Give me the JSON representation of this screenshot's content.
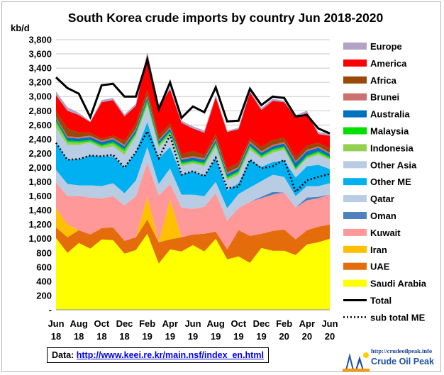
{
  "chart_data": {
    "type": "area",
    "title": "South Korea crude imports by country Jun 2018-2020",
    "ylabel": "kb/d",
    "ylim": [
      0,
      3800
    ],
    "yticks": [
      "-",
      "200",
      "400",
      "600",
      "800",
      "1,000",
      "1,200",
      "1,400",
      "1,600",
      "1,800",
      "2,000",
      "2,200",
      "2,400",
      "2,600",
      "2,800",
      "3,000",
      "3,200",
      "3,400",
      "3,600",
      "3,800"
    ],
    "grid": true,
    "x_labels": [
      {
        "month": "Jun",
        "year": "18"
      },
      {
        "month": "Aug",
        "year": "18"
      },
      {
        "month": "Oct",
        "year": "18"
      },
      {
        "month": "Dec",
        "year": "18"
      },
      {
        "month": "Feb",
        "year": "19"
      },
      {
        "month": "Apr",
        "year": "19"
      },
      {
        "month": "Jun",
        "year": "19"
      },
      {
        "month": "Aug",
        "year": "19"
      },
      {
        "month": "Oct",
        "year": "19"
      },
      {
        "month": "Dec",
        "year": "19"
      },
      {
        "month": "Feb",
        "year": "20"
      },
      {
        "month": "Apr",
        "year": "20"
      },
      {
        "month": "Jun",
        "year": "20"
      }
    ],
    "n_points": 25,
    "legend_position": "right",
    "stack_order_bottom_to_top": [
      "Saudi Arabia",
      "UAE",
      "Iran",
      "Kuwait",
      "Oman",
      "Qatar",
      "Other ME",
      "Other Asia",
      "Indonesia",
      "Malaysia",
      "Australia",
      "Brunei",
      "Africa",
      "America",
      "Europe"
    ],
    "series": [
      {
        "name": "Saudi Arabia",
        "color": "#ffff00",
        "values": [
          1010,
          800,
          940,
          860,
          990,
          980,
          790,
          840,
          1070,
          650,
          850,
          820,
          910,
          820,
          1000,
          710,
          750,
          660,
          870,
          830,
          830,
          770,
          920,
          950,
          1000
        ]
      },
      {
        "name": "UAE",
        "color": "#e46c0a",
        "values": [
          150,
          220,
          180,
          200,
          160,
          180,
          180,
          180,
          200,
          300,
          140,
          200,
          150,
          250,
          100,
          140,
          370,
          380,
          200,
          280,
          300,
          220,
          200,
          220,
          200
        ]
      },
      {
        "name": "Iran",
        "color": "#ffc000",
        "values": [
          270,
          180,
          0,
          0,
          0,
          0,
          0,
          0,
          320,
          0,
          560,
          0,
          0,
          0,
          0,
          0,
          0,
          0,
          0,
          0,
          0,
          0,
          0,
          0,
          0
        ]
      },
      {
        "name": "Kuwait",
        "color": "#ff9999",
        "values": [
          360,
          400,
          480,
          520,
          420,
          440,
          500,
          580,
          480,
          660,
          220,
          420,
          360,
          380,
          540,
          410,
          310,
          480,
          500,
          510,
          520,
          450,
          420,
          400,
          420
        ]
      },
      {
        "name": "Oman",
        "color": "#4f81bd",
        "values": [
          0,
          0,
          0,
          0,
          0,
          0,
          0,
          0,
          0,
          0,
          0,
          0,
          0,
          0,
          0,
          0,
          0,
          0,
          20,
          40,
          0,
          0,
          40,
          20,
          0
        ]
      },
      {
        "name": "Qatar",
        "color": "#b8cce4",
        "values": [
          180,
          170,
          150,
          170,
          170,
          180,
          170,
          220,
          220,
          160,
          220,
          180,
          200,
          150,
          160,
          170,
          200,
          200,
          220,
          240,
          220,
          160,
          160,
          150,
          160
        ]
      },
      {
        "name": "Other ME",
        "color": "#00b0f0",
        "values": [
          380,
          340,
          370,
          420,
          420,
          380,
          360,
          400,
          350,
          360,
          300,
          280,
          330,
          280,
          340,
          250,
          150,
          390,
          200,
          180,
          230,
          260,
          280,
          300,
          200
        ]
      },
      {
        "name": "Other Asia",
        "color": "#b8cce4",
        "values": [
          210,
          210,
          200,
          180,
          110,
          140,
          180,
          220,
          230,
          150,
          170,
          120,
          110,
          140,
          150,
          140,
          120,
          140,
          120,
          130,
          150,
          100,
          110,
          140,
          130
        ]
      },
      {
        "name": "Indonesia",
        "color": "#92d050",
        "values": [
          70,
          40,
          30,
          20,
          30,
          40,
          50,
          30,
          40,
          30,
          30,
          30,
          20,
          30,
          40,
          30,
          30,
          40,
          20,
          30,
          30,
          20,
          20,
          30,
          20
        ]
      },
      {
        "name": "Malaysia",
        "color": "#00e000",
        "values": [
          30,
          20,
          20,
          20,
          20,
          20,
          30,
          20,
          40,
          20,
          20,
          20,
          20,
          20,
          20,
          20,
          20,
          20,
          20,
          20,
          20,
          20,
          20,
          20,
          20
        ]
      },
      {
        "name": "Australia",
        "color": "#0070c0",
        "values": [
          30,
          40,
          40,
          40,
          40,
          40,
          40,
          40,
          40,
          40,
          40,
          40,
          40,
          40,
          40,
          40,
          40,
          40,
          40,
          40,
          40,
          70,
          60,
          50,
          40
        ]
      },
      {
        "name": "Brunei",
        "color": "#cc7070",
        "values": [
          20,
          20,
          20,
          20,
          20,
          20,
          20,
          20,
          20,
          20,
          20,
          20,
          20,
          20,
          20,
          20,
          20,
          20,
          20,
          20,
          20,
          20,
          20,
          20,
          20
        ]
      },
      {
        "name": "Africa",
        "color": "#984807",
        "values": [
          80,
          110,
          60,
          40,
          30,
          30,
          60,
          70,
          80,
          60,
          50,
          60,
          70,
          50,
          60,
          60,
          60,
          40,
          60,
          70,
          60,
          60,
          60,
          50,
          60
        ]
      },
      {
        "name": "America",
        "color": "#ff0000",
        "values": [
          230,
          250,
          250,
          150,
          510,
          500,
          340,
          250,
          510,
          410,
          480,
          440,
          320,
          310,
          520,
          510,
          470,
          650,
          520,
          550,
          500,
          560,
          460,
          120,
          180
        ]
      },
      {
        "name": "Europe",
        "color": "#b2a2c7",
        "values": [
          50,
          50,
          30,
          10,
          30,
          30,
          30,
          30,
          30,
          30,
          30,
          30,
          30,
          30,
          30,
          20,
          20,
          30,
          30,
          30,
          20,
          30,
          30,
          30,
          30
        ]
      },
      {
        "name": "Total",
        "color": "#000000",
        "line": true,
        "values": [
          3270,
          3120,
          3040,
          2710,
          3160,
          3180,
          3000,
          3000,
          3520,
          2820,
          3200,
          2700,
          2860,
          2780,
          3130,
          2650,
          2660,
          3110,
          2880,
          3000,
          2980,
          2720,
          2740,
          2550,
          2480
        ]
      },
      {
        "name": "sub total ME",
        "color": "#000000",
        "line": true,
        "dotted": true,
        "values": [
          2350,
          2110,
          2120,
          2170,
          2160,
          2180,
          2000,
          2220,
          2510,
          2130,
          2460,
          1900,
          1950,
          1880,
          2140,
          1710,
          1730,
          2110,
          1990,
          2020,
          2110,
          1660,
          1820,
          1870,
          1910
        ]
      }
    ]
  },
  "footer": {
    "data_label": "Data:",
    "data_url": "http://www.keei.re.kr/main.nsf/index_en.html"
  },
  "logo": {
    "url": "http://crudeoilpeak.info",
    "name": "Crude Oil Peak"
  }
}
